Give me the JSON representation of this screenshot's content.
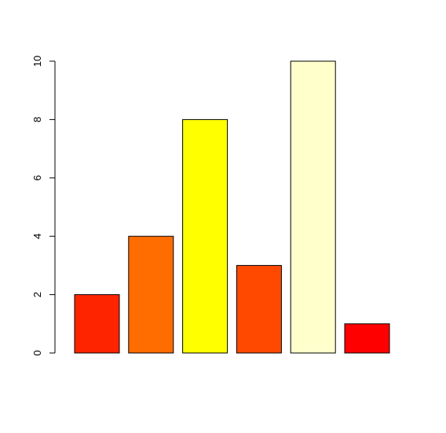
{
  "chart_data": {
    "type": "bar",
    "values": [
      2,
      4,
      8,
      3,
      10,
      1
    ],
    "colors": [
      "#FF2400",
      "#FF6D00",
      "#FFFF00",
      "#FF4900",
      "#FFFFCC",
      "#FF0000"
    ],
    "ylim": [
      0,
      10
    ],
    "yticks": [
      0,
      2,
      4,
      6,
      8,
      10
    ],
    "grid": false
  }
}
